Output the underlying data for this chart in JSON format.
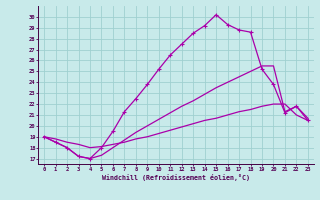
{
  "xlabel": "Windchill (Refroidissement éolien,°C)",
  "bg_color": "#c8eaea",
  "grid_color": "#a0d0d0",
  "line_color": "#aa00aa",
  "x_ticks": [
    0,
    1,
    2,
    3,
    4,
    5,
    6,
    7,
    8,
    9,
    10,
    11,
    12,
    13,
    14,
    15,
    16,
    17,
    18,
    19,
    20,
    21,
    22,
    23
  ],
  "y_ticks": [
    17,
    18,
    19,
    20,
    21,
    22,
    23,
    24,
    25,
    26,
    27,
    28,
    29,
    30
  ],
  "ylim": [
    16.5,
    31.0
  ],
  "xlim": [
    -0.5,
    23.5
  ],
  "upper_x": [
    0,
    1,
    2,
    3,
    4,
    5,
    6,
    7,
    8,
    9,
    10,
    11,
    12,
    13,
    14,
    15,
    16,
    17,
    18,
    19,
    20,
    21,
    22,
    23
  ],
  "upper_y": [
    19.0,
    18.5,
    18.0,
    17.2,
    17.0,
    18.0,
    19.5,
    21.3,
    22.5,
    23.8,
    25.2,
    26.5,
    27.5,
    28.5,
    29.2,
    30.2,
    29.3,
    28.8,
    28.6,
    25.2,
    23.8,
    21.2,
    21.8,
    20.5
  ],
  "mid_x": [
    0,
    1,
    2,
    3,
    4,
    5,
    6,
    7,
    8,
    9,
    10,
    11,
    12,
    13,
    14,
    15,
    16,
    17,
    18,
    19,
    20,
    21,
    22,
    23
  ],
  "mid_y": [
    19.0,
    18.5,
    18.0,
    17.2,
    17.0,
    17.3,
    18.0,
    18.7,
    19.4,
    20.0,
    20.6,
    21.2,
    21.8,
    22.3,
    22.9,
    23.5,
    24.0,
    24.5,
    25.0,
    25.5,
    25.5,
    21.3,
    21.8,
    20.7
  ],
  "lower_x": [
    0,
    1,
    2,
    3,
    4,
    5,
    6,
    7,
    8,
    9,
    10,
    11,
    12,
    13,
    14,
    15,
    16,
    17,
    18,
    19,
    20,
    21,
    22,
    23
  ],
  "lower_y": [
    19.0,
    18.8,
    18.5,
    18.3,
    18.0,
    18.1,
    18.3,
    18.5,
    18.8,
    19.0,
    19.3,
    19.6,
    19.9,
    20.2,
    20.5,
    20.7,
    21.0,
    21.3,
    21.5,
    21.8,
    22.0,
    22.0,
    21.0,
    20.5
  ]
}
